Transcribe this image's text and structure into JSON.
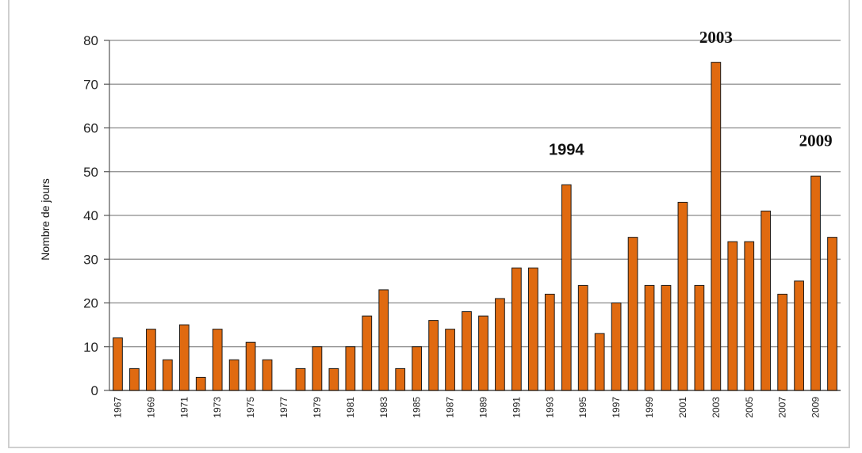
{
  "chart_data": {
    "type": "bar",
    "title": "",
    "xlabel": "",
    "ylabel": "Nombre de jours",
    "ylim": [
      0,
      80
    ],
    "yticks": [
      0,
      10,
      20,
      30,
      40,
      50,
      60,
      70,
      80
    ],
    "grid": "horizontal",
    "bar_color": "#e06a10",
    "bar_edge_color": "#1a1a1a",
    "categories": [
      "1967",
      "1968",
      "1969",
      "1970",
      "1971",
      "1972",
      "1973",
      "1974",
      "1975",
      "1976",
      "1977",
      "1978",
      "1979",
      "1980",
      "1981",
      "1982",
      "1983",
      "1984",
      "1985",
      "1986",
      "1987",
      "1988",
      "1989",
      "1990",
      "1991",
      "1992",
      "1993",
      "1994",
      "1995",
      "1996",
      "1997",
      "1998",
      "1999",
      "2000",
      "2001",
      "2002",
      "2003",
      "2004",
      "2005",
      "2006",
      "2007",
      "2008",
      "2009",
      "2010"
    ],
    "tick_labels": [
      "1967",
      "",
      "1969",
      "",
      "1971",
      "",
      "1973",
      "",
      "1975",
      "",
      "1977",
      "",
      "1979",
      "",
      "1981",
      "",
      "1983",
      "",
      "1985",
      "",
      "1987",
      "",
      "1989",
      "",
      "1991",
      "",
      "1993",
      "",
      "1995",
      "",
      "1997",
      "",
      "1999",
      "",
      "2001",
      "",
      "2003",
      "",
      "2005",
      "",
      "2007",
      "",
      "2009",
      ""
    ],
    "values": [
      12,
      5,
      14,
      7,
      15,
      3,
      14,
      7,
      11,
      7,
      0,
      5,
      10,
      5,
      10,
      17,
      23,
      5,
      10,
      16,
      14,
      18,
      17,
      21,
      28,
      28,
      22,
      47,
      24,
      13,
      20,
      35,
      24,
      24,
      43,
      24,
      75,
      34,
      34,
      41,
      22,
      25,
      49,
      35
    ],
    "annotations": [
      {
        "text": "1994",
        "category": "1994",
        "style": "sans"
      },
      {
        "text": "2003",
        "category": "2003",
        "style": "serif"
      },
      {
        "text": "2009",
        "category": "2009",
        "style": "serif"
      }
    ]
  }
}
